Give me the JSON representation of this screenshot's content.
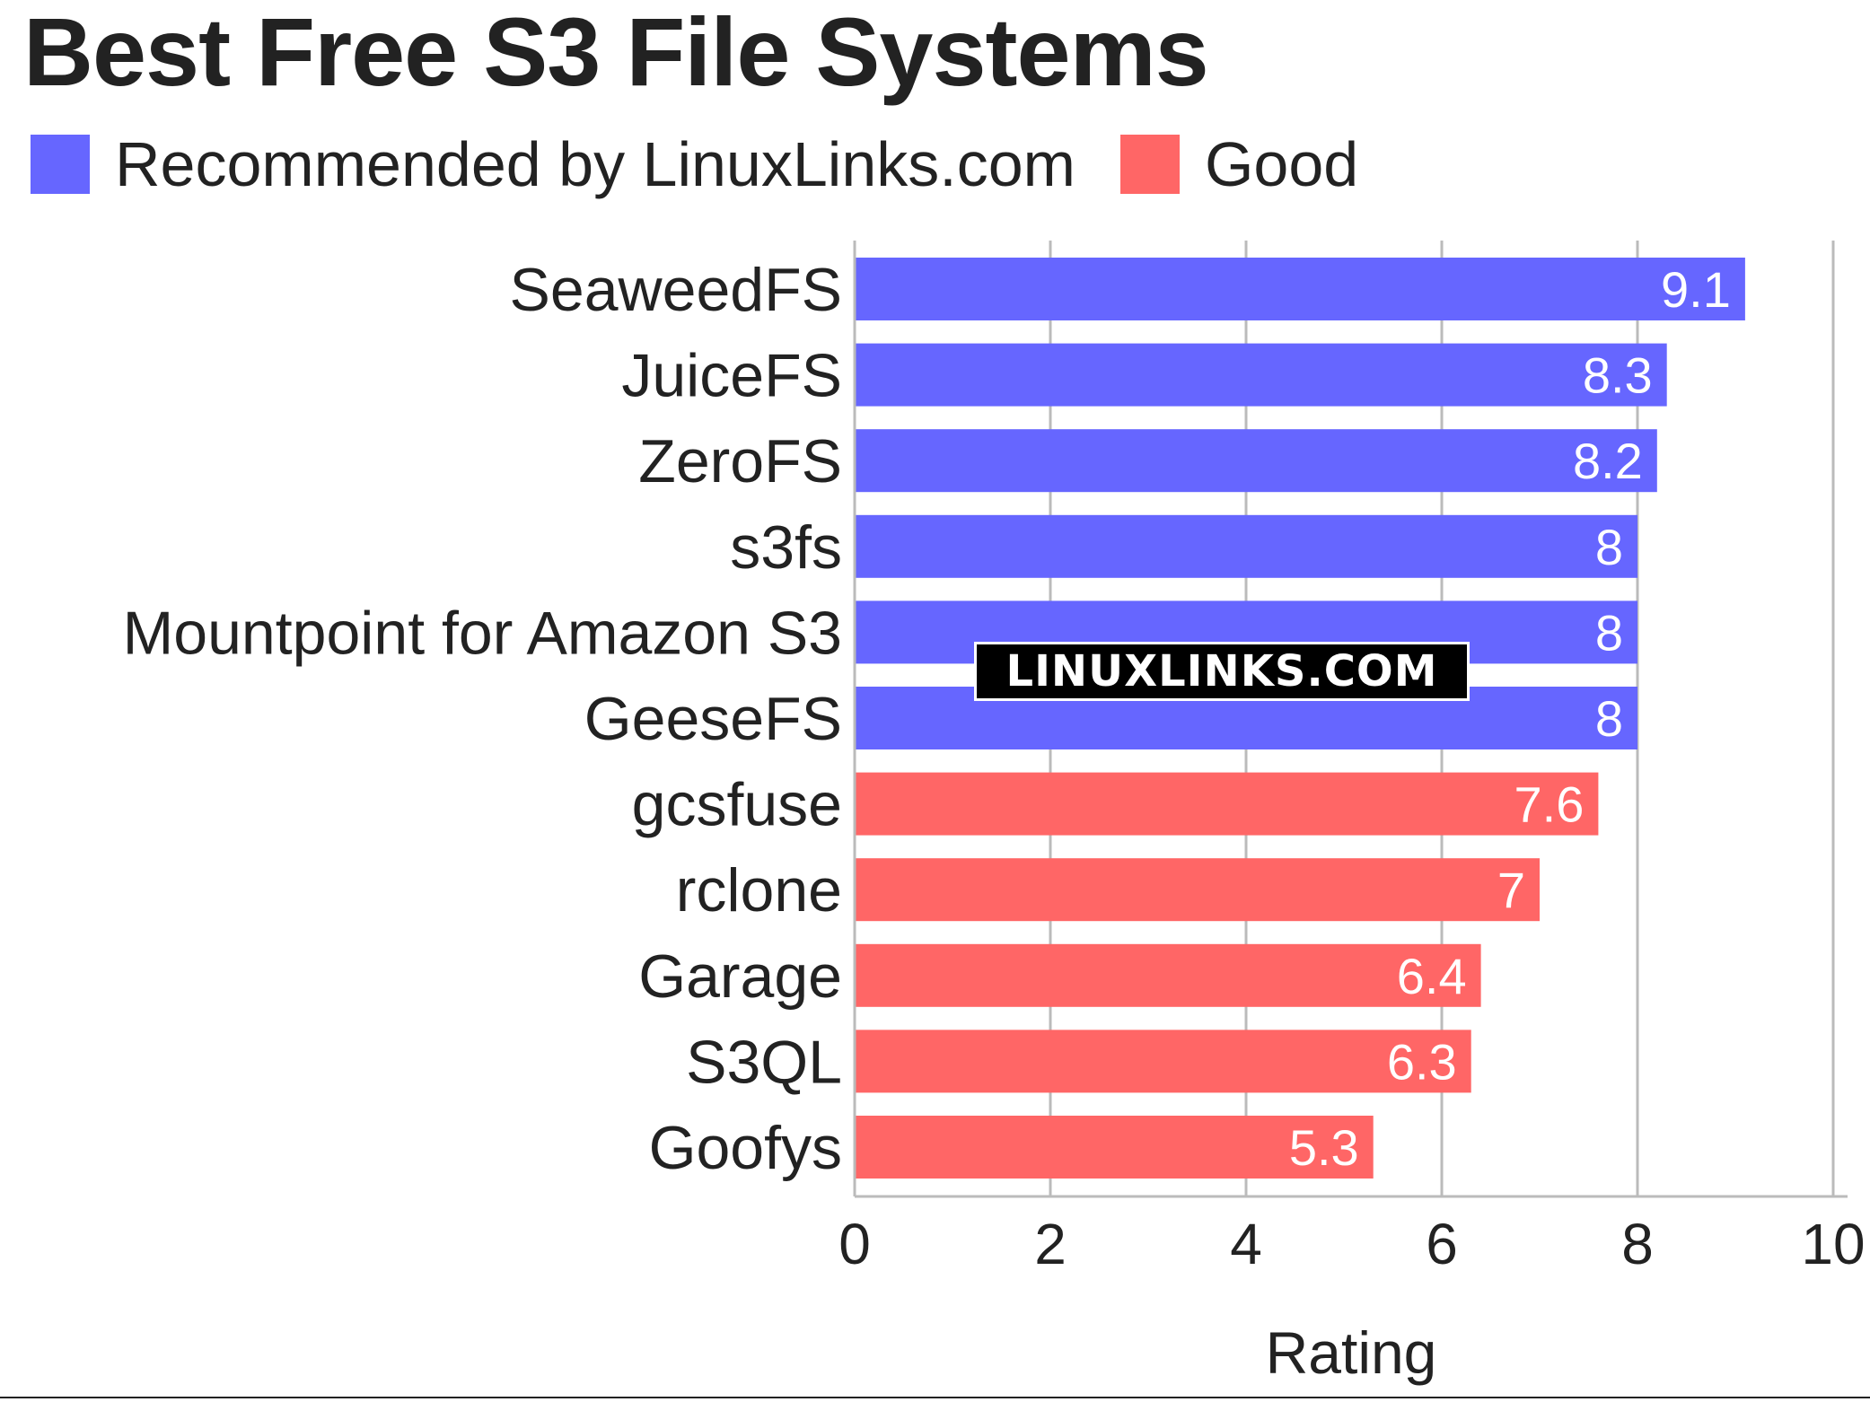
{
  "chart_data": {
    "type": "bar",
    "orientation": "horizontal",
    "title": "Best Free S3 File Systems",
    "xlabel": "Rating",
    "ylabel": "",
    "xlim": [
      0,
      10
    ],
    "xticks": [
      0,
      2,
      4,
      6,
      8,
      10
    ],
    "grid": true,
    "legend_placement": "top-left",
    "legend": [
      {
        "name": "Recommended by LinuxLinks.com",
        "color": "#6666ff"
      },
      {
        "name": "Good",
        "color": "#ff6666"
      }
    ],
    "categories": [
      "SeaweedFS",
      "JuiceFS",
      "ZeroFS",
      "s3fs",
      "Mountpoint for Amazon S3",
      "GeeseFS",
      "gcsfuse",
      "rclone",
      "Garage",
      "S3QL",
      "Goofys"
    ],
    "values": [
      9.1,
      8.3,
      8.2,
      8,
      8,
      8,
      7.6,
      7,
      6.4,
      6.3,
      5.3
    ],
    "data_labels": [
      "9.1",
      "8.3",
      "8.2",
      "8",
      "8",
      "8",
      "7.6",
      "7",
      "6.4",
      "6.3",
      "5.3"
    ],
    "group": [
      0,
      0,
      0,
      0,
      0,
      0,
      1,
      1,
      1,
      1,
      1
    ]
  },
  "watermark": "LINUXLINKS.COM",
  "colors": {
    "text": "#222222",
    "grid": "#bbbbbb",
    "value_label": "#ffffff"
  }
}
